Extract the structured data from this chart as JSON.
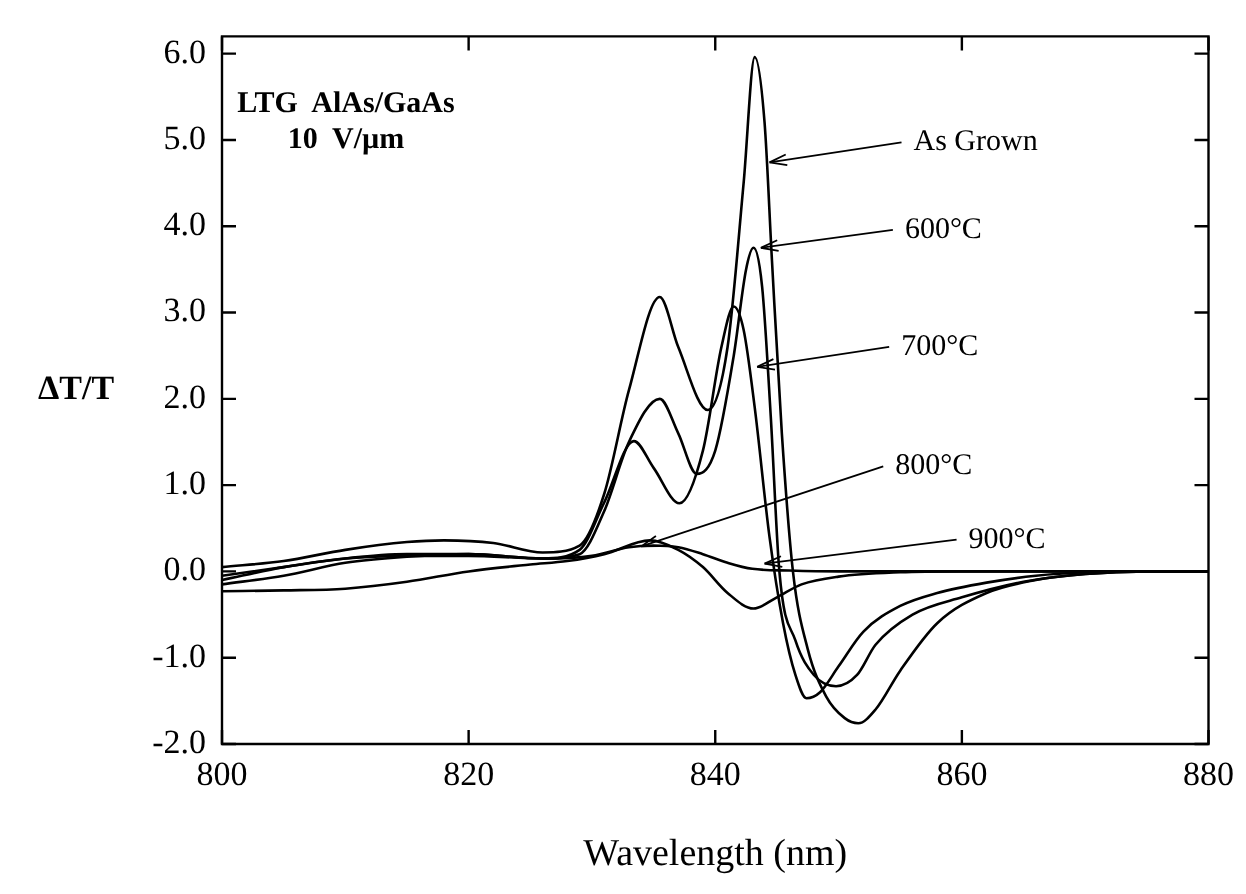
{
  "chart_data": {
    "type": "line",
    "title": "LTG  AlAs/GaAs",
    "subtitle": "10  V/µm",
    "xlabel": "Wavelength (nm)",
    "ylabel": "ΔT/T",
    "xlim": [
      800,
      880
    ],
    "xticks": [
      800,
      820,
      840,
      860,
      880
    ],
    "ylim": [
      -2,
      6.2
    ],
    "yticks": [
      {
        "value": -2,
        "label": "-2.0"
      },
      {
        "value": -1,
        "label": "-1.0"
      },
      {
        "value": 0,
        "label": "0.0"
      },
      {
        "value": 1,
        "label": "1.0"
      },
      {
        "value": 2,
        "label": "2.0"
      },
      {
        "value": 3,
        "label": "3.0"
      },
      {
        "value": 4,
        "label": "4.0"
      },
      {
        "value": 5,
        "label": "5.0"
      },
      {
        "value": 6,
        "label": "6.0"
      }
    ],
    "grid": false,
    "legend": false,
    "marker": "none",
    "line_style": "solid",
    "series": [
      {
        "color": "#000000",
        "x": [
          800,
          805,
          810,
          815,
          818,
          822,
          826,
          829,
          831,
          833,
          835.5,
          837,
          839.4,
          841,
          842.3,
          843.2,
          844,
          844.6,
          845.4,
          846.3,
          847.5,
          849,
          850.5,
          851.6,
          853,
          855,
          858,
          862,
          866,
          870,
          875,
          880
        ],
        "values": [
          0.05,
          0.12,
          0.25,
          0.34,
          0.36,
          0.33,
          0.22,
          0.3,
          0.9,
          2.1,
          3.18,
          2.6,
          1.87,
          2.6,
          4.5,
          5.96,
          5.2,
          3.6,
          1.6,
          0,
          -0.9,
          -1.45,
          -1.7,
          -1.76,
          -1.6,
          -1.15,
          -0.6,
          -0.25,
          -0.1,
          -0.03,
          0,
          0
        ]
      },
      {
        "color": "#000000",
        "x": [
          800,
          805,
          810,
          815,
          820,
          826,
          829,
          831,
          833,
          835.5,
          837,
          838.5,
          840,
          841.5,
          842.5,
          843.1,
          843.8,
          844.5,
          845.2,
          846.5,
          848,
          849.8,
          851.5,
          853,
          856,
          860,
          865,
          870,
          875,
          880
        ],
        "values": [
          -0.05,
          0.05,
          0.15,
          0.18,
          0.18,
          0.15,
          0.2,
          0.7,
          1.5,
          2.0,
          1.6,
          1.13,
          1.4,
          2.5,
          3.5,
          3.75,
          3.3,
          1.8,
          0,
          -0.8,
          -1.2,
          -1.33,
          -1.2,
          -0.85,
          -0.5,
          -0.3,
          -0.12,
          -0.03,
          0,
          0
        ]
      },
      {
        "color": "#000000",
        "x": [
          800,
          805,
          810,
          815,
          820,
          826,
          829,
          831,
          833.4,
          835,
          837.1,
          839,
          840.5,
          841.5,
          842.3,
          843.2,
          844.4,
          845.5,
          846.5,
          847.4,
          848.5,
          850,
          852,
          855,
          858,
          862,
          866,
          870,
          875,
          880
        ],
        "values": [
          -0.1,
          0.05,
          0.15,
          0.2,
          0.2,
          0.15,
          0.25,
          0.8,
          1.51,
          1.2,
          0.79,
          1.4,
          2.6,
          3.07,
          2.8,
          1.9,
          0.4,
          -0.6,
          -1.2,
          -1.47,
          -1.4,
          -1.1,
          -0.7,
          -0.4,
          -0.25,
          -0.13,
          -0.05,
          -0.01,
          0,
          0
        ]
      },
      {
        "color": "#000000",
        "x": [
          800,
          805,
          810,
          815,
          820,
          825,
          828,
          831,
          834.7,
          837,
          839,
          841,
          843.1,
          845,
          847,
          850,
          855,
          860,
          870,
          880
        ],
        "values": [
          -0.23,
          -0.22,
          -0.2,
          -0.12,
          0,
          0.08,
          0.12,
          0.2,
          0.36,
          0.25,
          0.05,
          -0.25,
          -0.43,
          -0.3,
          -0.15,
          -0.06,
          -0.01,
          0,
          0,
          0
        ]
      },
      {
        "color": "#000000",
        "x": [
          800,
          805,
          810,
          815,
          820,
          826,
          830,
          833,
          835,
          837,
          839,
          841,
          843,
          846,
          850,
          860,
          870,
          880
        ],
        "values": [
          -0.15,
          -0.05,
          0.1,
          0.17,
          0.2,
          0.15,
          0.18,
          0.28,
          0.3,
          0.28,
          0.2,
          0.1,
          0.03,
          0.01,
          0,
          0,
          0,
          0
        ]
      }
    ],
    "annotations": [
      {
        "text": "As Grown",
        "x": 844.4,
        "y": 4.74
      },
      {
        "text": "600°C",
        "x": 843.7,
        "y": 3.75
      },
      {
        "text": "700°C",
        "x": 843.4,
        "y": 2.37
      },
      {
        "text": "800°C",
        "x": 834,
        "y": 0.29
      },
      {
        "text": "900°C",
        "x": 844,
        "y": 0.09
      }
    ]
  }
}
